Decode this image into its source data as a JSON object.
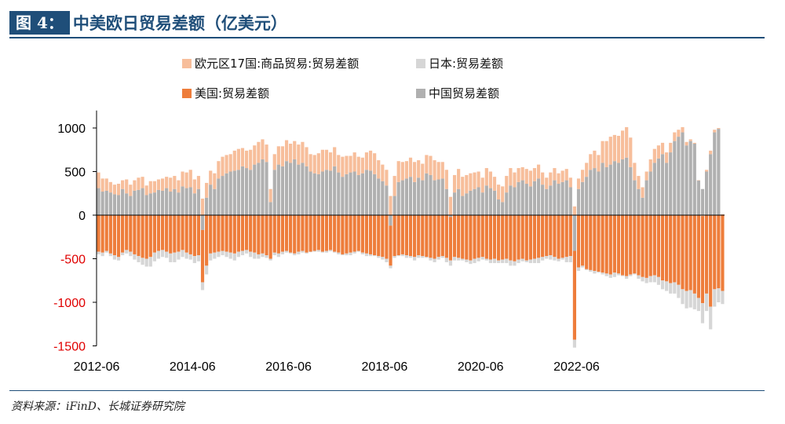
{
  "header": {
    "figure_label": "图 4：",
    "title": "中美欧日贸易差额（亿美元）"
  },
  "source": "资料来源：iFinD、长城证券研究院",
  "colors": {
    "eu": "#f7be9b",
    "japan": "#d6d6d6",
    "us": "#ee7d3b",
    "china": "#b0b0b0",
    "negative_tick": "#e00000",
    "positive_tick": "#000000"
  },
  "chart_data": {
    "type": "bar",
    "stacked": true,
    "x_tick_labels": [
      "2012-06",
      "2014-06",
      "2016-06",
      "2018-06",
      "2020-06",
      "2022-06"
    ],
    "y_ticks": [
      1000,
      500,
      0,
      -500,
      -1000,
      -1500
    ],
    "y_tick_labels": [
      "1000",
      "500",
      "0",
      "-500",
      "-1000",
      "-1500"
    ],
    "ylim": [
      -1500,
      1200
    ],
    "x_start": "2012-06",
    "legend": {
      "eu": "欧元区17国:商品贸易:贸易差额",
      "japan": "日本:贸易差额",
      "us": "美国:贸易差额",
      "china": "中国贸易差额"
    },
    "series": [
      {
        "name": "中国贸易差额",
        "key": "china",
        "values": [
          310,
          270,
          280,
          260,
          240,
          230,
          300,
          250,
          220,
          280,
          290,
          310,
          230,
          250,
          260,
          290,
          280,
          310,
          270,
          300,
          260,
          330,
          310,
          320,
          250,
          300,
          -170,
          200,
          350,
          300,
          420,
          450,
          480,
          500,
          510,
          520,
          560,
          540,
          520,
          580,
          600,
          640,
          610,
          150,
          520,
          580,
          560,
          620,
          600,
          640,
          580,
          600,
          560,
          500,
          480,
          470,
          500,
          520,
          510,
          560,
          490,
          440,
          470,
          490,
          500,
          460,
          480,
          520,
          510,
          470,
          420,
          390,
          340,
          -120,
          220,
          380,
          400,
          420,
          440,
          380,
          430,
          400,
          480,
          460,
          400,
          410,
          420,
          300,
          -20,
          260,
          300,
          220,
          250,
          280,
          300,
          320,
          260,
          340,
          310,
          280,
          180,
          150,
          260,
          340,
          320,
          380,
          400,
          360,
          330,
          390,
          420,
          350,
          300,
          340,
          400,
          360,
          380,
          400,
          320,
          -410,
          300,
          380,
          440,
          520,
          540,
          500,
          600,
          550,
          580,
          620,
          600,
          640,
          660,
          550,
          400,
          300,
          200,
          400,
          500,
          600,
          650,
          700,
          600,
          720,
          850,
          900,
          950,
          800,
          850,
          820,
          400,
          300,
          500,
          700,
          950,
          990
        ],
        "note": ""
      },
      {
        "name": "日本:贸易差额",
        "key": "japan",
        "values": [
          -30,
          -40,
          -20,
          -30,
          -50,
          -40,
          -30,
          -40,
          -50,
          -60,
          -70,
          -80,
          -90,
          -110,
          -100,
          -90,
          -80,
          -70,
          -100,
          -110,
          -90,
          -80,
          -70,
          -60,
          -80,
          -70,
          -90,
          -100,
          -80,
          -70,
          -60,
          -50,
          -60,
          -70,
          -80,
          -60,
          -50,
          -40,
          -60,
          -70,
          -50,
          -40,
          -30,
          -20,
          -30,
          -40,
          -30,
          -20,
          -10,
          -20,
          -30,
          -20,
          -10,
          -5,
          -10,
          -20,
          -10,
          -20,
          -15,
          -10,
          -20,
          -10,
          -20,
          -30,
          -20,
          -10,
          -20,
          -30,
          -20,
          -10,
          -20,
          -30,
          -40,
          -30,
          -20,
          -10,
          -20,
          -30,
          -20,
          -40,
          -30,
          -20,
          -10,
          -30,
          -40,
          -30,
          -20,
          -50,
          -60,
          -40,
          -30,
          -20,
          -30,
          -40,
          -50,
          -40,
          -30,
          -20,
          -40,
          -50,
          -30,
          -40,
          -50,
          -60,
          -50,
          -40,
          -30,
          -20,
          -40,
          -50,
          -60,
          -40,
          -30,
          -50,
          -40,
          -30,
          -20,
          -60,
          -70,
          -90,
          -40,
          -20,
          -10,
          -20,
          -30,
          -10,
          -20,
          -30,
          -40,
          -50,
          -20,
          -10,
          -30,
          -20,
          -10,
          -40,
          -50,
          -60,
          -70,
          -80,
          -90,
          -100,
          -110,
          -120,
          -130,
          -150,
          -170,
          -200,
          -200,
          -180,
          -150,
          -230,
          -200,
          -260,
          -200,
          -160,
          -150
        ],
        "note": ""
      },
      {
        "name": "欧元区17国:商品贸易:贸易差额",
        "key": "eu",
        "values": [
          180,
          150,
          140,
          120,
          110,
          130,
          100,
          160,
          130,
          120,
          140,
          130,
          110,
          140,
          130,
          120,
          140,
          130,
          160,
          150,
          140,
          170,
          180,
          200,
          160,
          150,
          190,
          170,
          160,
          180,
          200,
          220,
          210,
          200,
          230,
          240,
          210,
          200,
          230,
          220,
          240,
          230,
          200,
          150,
          180,
          210,
          230,
          240,
          220,
          210,
          230,
          240,
          220,
          200,
          210,
          240,
          250,
          230,
          210,
          220,
          200,
          230,
          210,
          190,
          220,
          210,
          180,
          200,
          230,
          240,
          210,
          190,
          180,
          220,
          230,
          240,
          210,
          200,
          220,
          230,
          200,
          190,
          210,
          220,
          230,
          200,
          190,
          220,
          210,
          200,
          230,
          220,
          210,
          200,
          190,
          180,
          170,
          200,
          190,
          160,
          170,
          180,
          190,
          200,
          170,
          160,
          150,
          170,
          180,
          150,
          160,
          140,
          130,
          150,
          140,
          120,
          130,
          130,
          110,
          100,
          120,
          140,
          160,
          180,
          200,
          190,
          250,
          300,
          320,
          300,
          310,
          330,
          350,
          340,
          200,
          150,
          120,
          100,
          140,
          160,
          150,
          130,
          120,
          110,
          100,
          80,
          60,
          40,
          20,
          10,
          0,
          -10,
          20,
          40,
          30,
          10,
          10
        ],
        "note": ""
      },
      {
        "name": "美国:贸易差额",
        "key": "us",
        "values": [
          -420,
          -430,
          -410,
          -440,
          -460,
          -480,
          -430,
          -400,
          -420,
          -450,
          -470,
          -490,
          -500,
          -480,
          -430,
          -410,
          -400,
          -420,
          -440,
          -430,
          -420,
          -400,
          -430,
          -450,
          -470,
          -460,
          -600,
          -580,
          -440,
          -430,
          -420,
          -410,
          -420,
          -430,
          -440,
          -420,
          -410,
          -400,
          -420,
          -430,
          -450,
          -440,
          -460,
          -500,
          -430,
          -440,
          -420,
          -410,
          -430,
          -440,
          -420,
          -410,
          -430,
          -420,
          -410,
          -400,
          -420,
          -410,
          -400,
          -420,
          -430,
          -450,
          -440,
          -430,
          -420,
          -410,
          -430,
          -440,
          -450,
          -460,
          -470,
          -480,
          -500,
          -460,
          -470,
          -460,
          -450,
          -460,
          -470,
          -480,
          -460,
          -470,
          -480,
          -490,
          -500,
          -480,
          -470,
          -490,
          -500,
          -480,
          -490,
          -500,
          -510,
          -520,
          -500,
          -490,
          -480,
          -500,
          -510,
          -500,
          -520,
          -510,
          -500,
          -520,
          -530,
          -510,
          -500,
          -520,
          -510,
          -500,
          -490,
          -480,
          -470,
          -460,
          -480,
          -500,
          -490,
          -480,
          -470,
          -1020,
          -600,
          -580,
          -620,
          -630,
          -640,
          -650,
          -660,
          -670,
          -680,
          -660,
          -670,
          -690,
          -700,
          -680,
          -670,
          -690,
          -710,
          -720,
          -700,
          -690,
          -710,
          -750,
          -760,
          -780,
          -770,
          -800,
          -850,
          -870,
          -860,
          -900,
          -950,
          -1000,
          -900,
          -1050,
          -850,
          -840,
          -870
        ]
      }
    ]
  }
}
